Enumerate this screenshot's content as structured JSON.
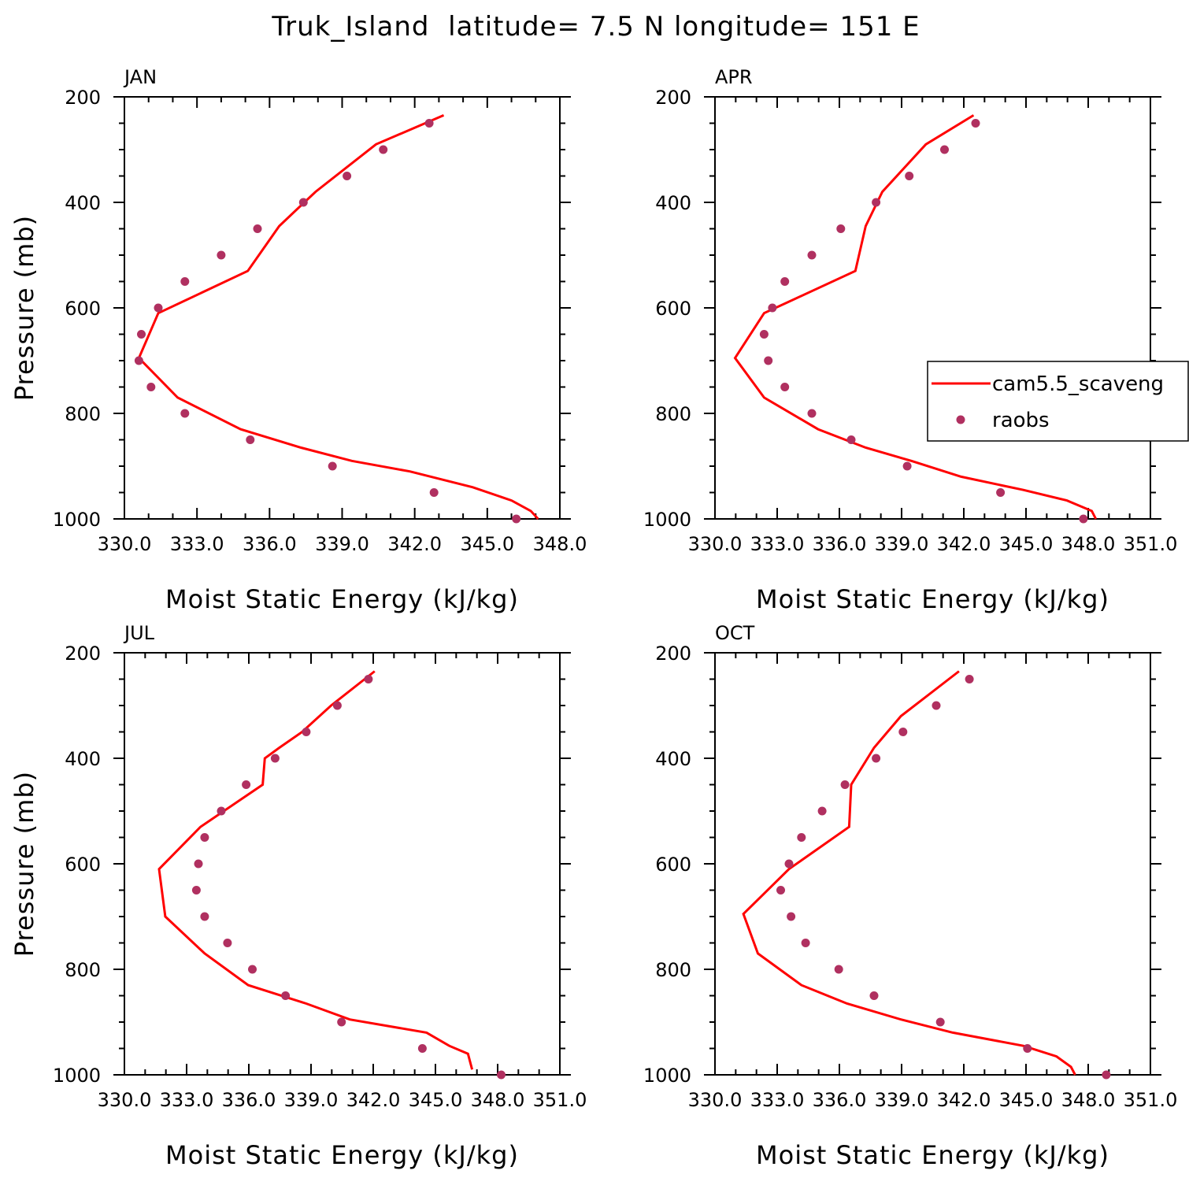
{
  "figure_title": "Truk_Island  latitude= 7.5 N longitude= 151 E",
  "colors": {
    "model": "#ff0000",
    "obs": "#b03060",
    "axis": "#000000"
  },
  "legend": {
    "model_label": "cam5.5_scaveng",
    "obs_label": "raobs",
    "placement": "right-middle of APR panel"
  },
  "chart_data": [
    {
      "type": "line+scatter",
      "title": "JAN",
      "xlabel": "Moist Static Energy (kJ/kg)",
      "ylabel": "Pressure (mb)",
      "xlim": [
        330.0,
        348.0
      ],
      "xtick_labels": [
        "330.0",
        "333.0",
        "336.0",
        "339.0",
        "342.0",
        "345.0",
        "348.0"
      ],
      "ylim": [
        200,
        1000
      ],
      "y_inverted": true,
      "ytick_labels": [
        "200",
        "400",
        "600",
        "800",
        "1000"
      ],
      "series": [
        {
          "name": "cam5.5_scaveng",
          "kind": "line",
          "x": [
            343.2,
            340.4,
            337.9,
            336.4,
            335.1,
            331.4,
            330.6,
            332.2,
            334.8,
            337.3,
            339.4,
            341.8,
            344.4,
            346.0,
            346.8,
            347.1
          ],
          "y": [
            235,
            290,
            380,
            445,
            530,
            610,
            695,
            770,
            830,
            865,
            890,
            910,
            940,
            965,
            985,
            1000
          ]
        },
        {
          "name": "raobs",
          "kind": "scatter",
          "x": [
            342.6,
            340.7,
            339.2,
            337.4,
            335.5,
            334.0,
            332.5,
            331.4,
            330.7,
            330.6,
            331.1,
            332.5,
            335.2,
            338.6,
            342.8,
            346.2
          ],
          "y": [
            250,
            300,
            350,
            400,
            450,
            500,
            550,
            600,
            650,
            700,
            750,
            800,
            850,
            900,
            950,
            1000
          ]
        }
      ]
    },
    {
      "type": "line+scatter",
      "title": "APR",
      "xlabel": "Moist Static Energy (kJ/kg)",
      "ylabel": "",
      "xlim": [
        330.03,
        351.03
      ],
      "xtick_labels": [
        "330.0",
        "333.0",
        "336.0",
        "339.0",
        "342.0",
        "345.0",
        "348.0",
        "351.0"
      ],
      "ylim": [
        200,
        1000
      ],
      "y_inverted": true,
      "ytick_labels": [
        "200",
        "400",
        "600",
        "800",
        "1000"
      ],
      "series": [
        {
          "name": "cam5.5_scaveng",
          "kind": "line",
          "x": [
            342.5,
            340.2,
            338.1,
            337.3,
            336.8,
            332.4,
            331.0,
            332.4,
            335.0,
            337.3,
            339.5,
            341.9,
            344.9,
            347.0,
            348.2,
            348.4
          ],
          "y": [
            235,
            290,
            380,
            445,
            530,
            610,
            695,
            770,
            830,
            865,
            890,
            920,
            945,
            965,
            985,
            1000
          ]
        },
        {
          "name": "raobs",
          "kind": "scatter",
          "x": [
            342.6,
            341.1,
            339.4,
            337.8,
            336.1,
            334.7,
            333.4,
            332.8,
            332.4,
            332.6,
            333.4,
            334.7,
            336.6,
            339.3,
            343.8,
            347.8
          ],
          "y": [
            250,
            300,
            350,
            400,
            450,
            500,
            550,
            600,
            650,
            700,
            750,
            800,
            850,
            900,
            950,
            1000
          ]
        }
      ]
    },
    {
      "type": "line+scatter",
      "title": "JUL",
      "xlabel": "Moist Static Energy (kJ/kg)",
      "ylabel": "Pressure (mb)",
      "xlim": [
        330.03,
        351.03
      ],
      "xtick_labels": [
        "330.0",
        "333.0",
        "336.0",
        "339.0",
        "342.0",
        "345.0",
        "348.0",
        "351.0"
      ],
      "ylim": [
        200,
        1000
      ],
      "y_inverted": true,
      "ytick_labels": [
        "200",
        "400",
        "600",
        "800",
        "1000"
      ],
      "series": [
        {
          "name": "cam5.5_scaveng",
          "kind": "line",
          "x": [
            342.1,
            340.0,
            338.6,
            337.5,
            336.8,
            336.7,
            333.7,
            331.7,
            332.0,
            333.9,
            336.0,
            338.8,
            340.9,
            344.6,
            345.7,
            346.6,
            346.8
          ],
          "y": [
            235,
            300,
            350,
            380,
            400,
            450,
            530,
            610,
            700,
            770,
            830,
            865,
            895,
            920,
            945,
            960,
            990
          ]
        },
        {
          "name": "raobs",
          "kind": "scatter",
          "x": [
            341.8,
            340.3,
            338.8,
            337.3,
            335.9,
            334.7,
            333.9,
            333.6,
            333.5,
            333.9,
            335.0,
            336.2,
            337.8,
            340.5,
            344.4,
            348.2
          ],
          "y": [
            250,
            300,
            350,
            400,
            450,
            500,
            550,
            600,
            650,
            700,
            750,
            800,
            850,
            900,
            950,
            1000
          ]
        }
      ]
    },
    {
      "type": "line+scatter",
      "title": "OCT",
      "xlabel": "Moist Static Energy (kJ/kg)",
      "ylabel": "",
      "xlim": [
        330.03,
        351.03
      ],
      "xtick_labels": [
        "330.0",
        "333.0",
        "336.0",
        "339.0",
        "342.0",
        "345.0",
        "348.0",
        "351.0"
      ],
      "ylim": [
        200,
        1000
      ],
      "y_inverted": true,
      "ytick_labels": [
        "200",
        "400",
        "600",
        "800",
        "1000"
      ],
      "series": [
        {
          "name": "cam5.5_scaveng",
          "kind": "line",
          "x": [
            341.8,
            339.0,
            337.7,
            336.6,
            336.5,
            333.6,
            331.4,
            332.1,
            334.2,
            336.4,
            339.0,
            341.5,
            344.9,
            346.5,
            347.2,
            347.4
          ],
          "y": [
            235,
            320,
            380,
            450,
            530,
            610,
            695,
            770,
            830,
            865,
            895,
            920,
            945,
            965,
            985,
            1000
          ]
        },
        {
          "name": "raobs",
          "kind": "scatter",
          "x": [
            342.3,
            340.7,
            339.1,
            337.8,
            336.3,
            335.2,
            334.2,
            333.6,
            333.2,
            333.7,
            334.4,
            336.0,
            337.7,
            340.9,
            345.1,
            348.9
          ],
          "y": [
            250,
            300,
            350,
            400,
            450,
            500,
            550,
            600,
            650,
            700,
            750,
            800,
            850,
            900,
            950,
            1000
          ]
        }
      ]
    }
  ]
}
